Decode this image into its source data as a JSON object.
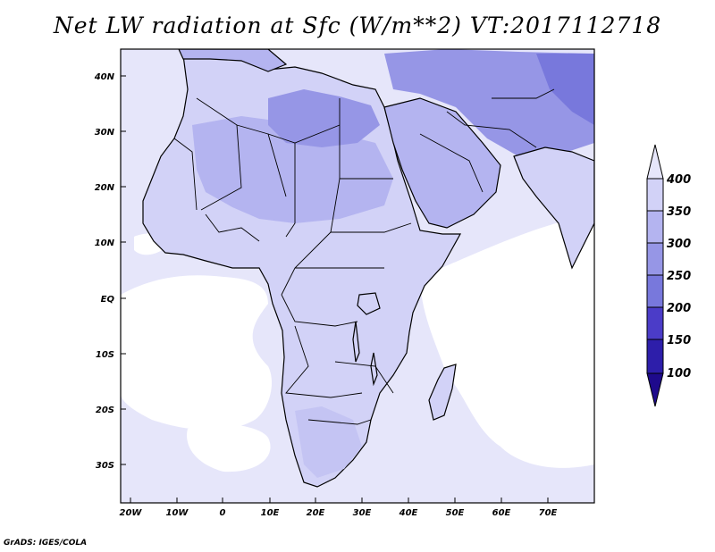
{
  "title": "Net LW radiation at Sfc (W/m**2) VT:2017112718",
  "footer": "GrADS: IGES/COLA",
  "map": {
    "lat_labels": [
      "40N",
      "30N",
      "20N",
      "10N",
      "EQ",
      "10S",
      "20S",
      "30S"
    ],
    "lon_labels": [
      "20W",
      "10W",
      "0",
      "10E",
      "20E",
      "30E",
      "40E",
      "50E",
      "60E",
      "70E"
    ]
  },
  "colorbar": {
    "labels": [
      "400",
      "350",
      "300",
      "250",
      "200",
      "150",
      "100"
    ],
    "colors": [
      "#e6e6fa",
      "#d2d2f7",
      "#b4b4f0",
      "#9696e6",
      "#7878dc",
      "#4b3cc8",
      "#2d1eaa",
      "#1e0a8c"
    ]
  },
  "chart_data": {
    "type": "heatmap",
    "title": "Net LW radiation at Sfc (W/m**2) VT:2017112718",
    "xlim": [
      -22,
      80
    ],
    "ylim": [
      -37,
      45
    ],
    "levels": [
      100,
      150,
      200,
      250,
      300,
      350,
      400
    ]
  }
}
